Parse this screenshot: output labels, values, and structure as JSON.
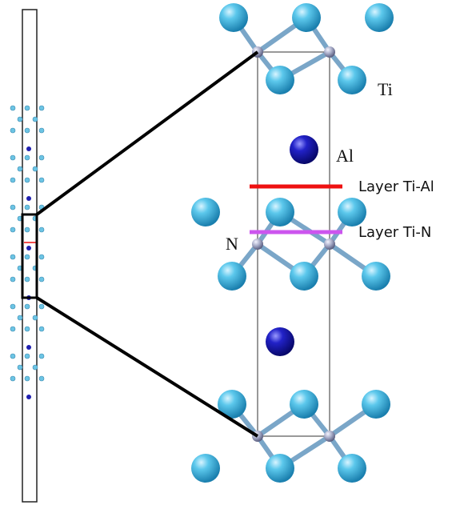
{
  "labels": {
    "ti": "Ti",
    "al": "Al",
    "n": "N",
    "layer_ti_al": "Layer Ti-Al",
    "layer_ti_n": "Layer Ti-N"
  }
}
